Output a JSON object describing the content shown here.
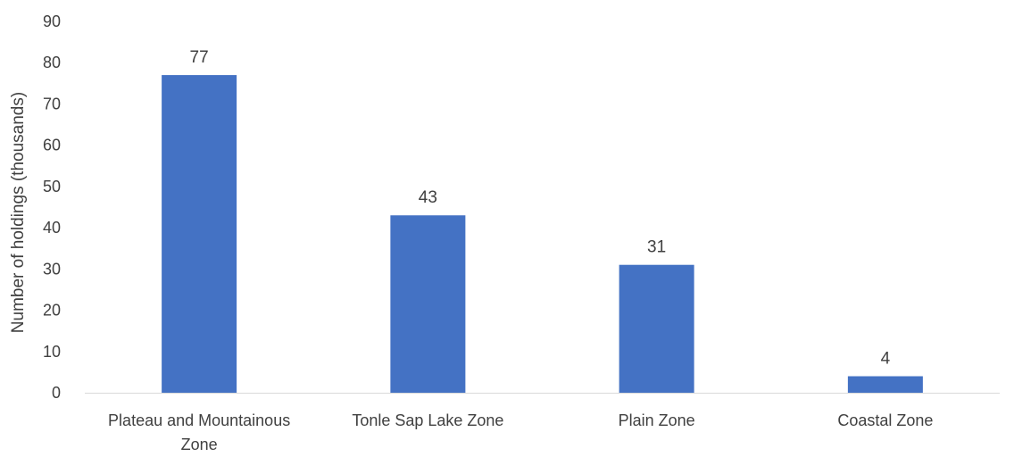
{
  "chart_data": {
    "type": "bar",
    "title": "",
    "xlabel": "",
    "ylabel": "Number of holdings (thousands)",
    "categories": [
      [
        "Plateau and Mountainous",
        "Zone"
      ],
      [
        "Tonle Sap Lake Zone"
      ],
      [
        "Plain Zone"
      ],
      [
        "Coastal Zone"
      ]
    ],
    "values": [
      77,
      43,
      31,
      4
    ],
    "data_labels": [
      "77",
      "43",
      "31",
      "4"
    ],
    "ylim": [
      0,
      90
    ],
    "yticks": [
      0,
      10,
      20,
      30,
      40,
      50,
      60,
      70,
      80,
      90
    ],
    "grid": false,
    "legend": "none",
    "bar_color": "#4472C4",
    "axis_color": "#D9D9D9",
    "text_color": "#404040"
  }
}
